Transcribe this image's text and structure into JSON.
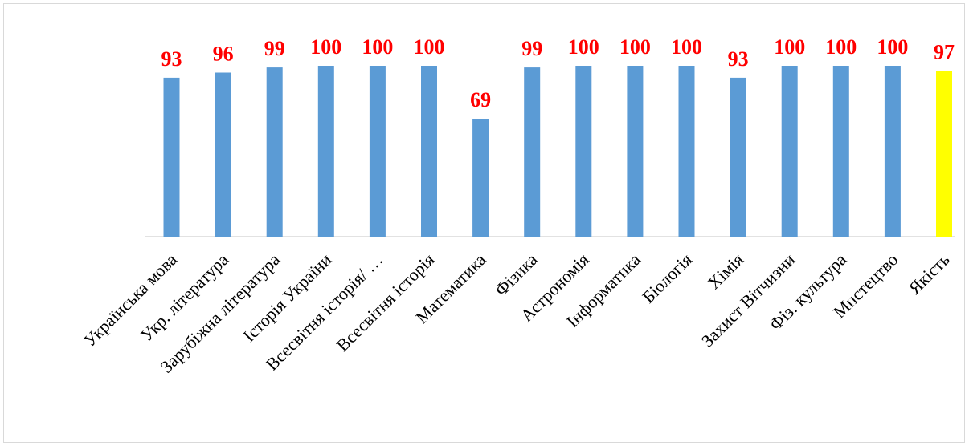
{
  "chart_data": {
    "type": "bar",
    "categories": [
      "Українська  мова",
      "Укр. література",
      "Зарубіжна література",
      "Історія України",
      "Всесвітня історія/ …",
      "Всесвітня історія",
      "Математика",
      "Фізика",
      "Астрономія",
      "Інформатика",
      "Біологія",
      "Хімія",
      "Захист Вітчизни",
      "Фіз. культура",
      "Мистецтво",
      "Якість"
    ],
    "values": [
      93,
      96,
      99,
      100,
      100,
      100,
      69,
      99,
      100,
      100,
      100,
      93,
      100,
      100,
      100,
      97
    ],
    "value_labels": [
      "93",
      "96",
      "99",
      "100",
      "100",
      "100",
      "69",
      "99",
      "100",
      "100",
      "100",
      "93",
      "100",
      "100",
      "100",
      "97"
    ],
    "ylim": [
      0,
      100
    ],
    "grid": false,
    "legend": "none",
    "title": "",
    "xlabel": "",
    "ylabel": "",
    "colors": {
      "bar": "#5b9bd5",
      "highlight_bar": "#ffff00",
      "value_label": "#ff0000",
      "axis": "#d9d9d9"
    },
    "highlight_index": 15
  }
}
